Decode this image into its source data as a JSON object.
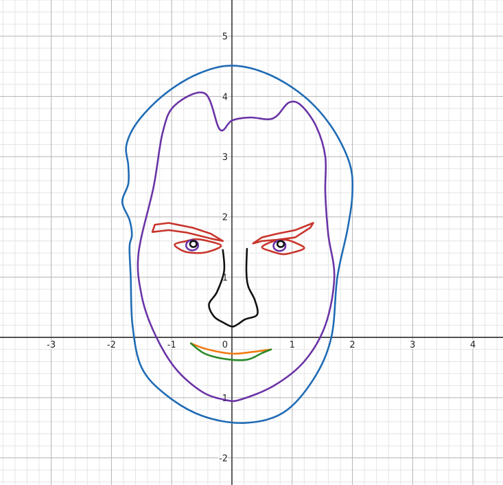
{
  "chart_data": {
    "type": "line",
    "title": "",
    "xlabel": "",
    "ylabel": "",
    "xlim": [
      -3.85,
      4.5
    ],
    "ylim": [
      -2.45,
      5.6
    ],
    "grid": true,
    "minor_subdivisions": 5,
    "x_ticks": [
      {
        "value": -3,
        "label": "-3"
      },
      {
        "value": -2,
        "label": "-2"
      },
      {
        "value": -1,
        "label": "-1"
      },
      {
        "value": 0,
        "label": "0"
      },
      {
        "value": 1,
        "label": "1"
      },
      {
        "value": 2,
        "label": "2"
      },
      {
        "value": 3,
        "label": "3"
      },
      {
        "value": 4,
        "label": "4"
      }
    ],
    "y_ticks": [
      {
        "value": -2,
        "label": "-2"
      },
      {
        "value": -1,
        "label": "-1"
      },
      {
        "value": 1,
        "label": "1"
      },
      {
        "value": 2,
        "label": "2"
      },
      {
        "value": 3,
        "label": "3"
      },
      {
        "value": 4,
        "label": "4"
      },
      {
        "value": 5,
        "label": "5"
      }
    ],
    "series": [
      {
        "name": "outer-head",
        "color": "#1f6bb5",
        "closed": true,
        "smooth": true,
        "points": [
          [
            0,
            4.51
          ],
          [
            0.6,
            4.37
          ],
          [
            1.2,
            4.0
          ],
          [
            1.65,
            3.5
          ],
          [
            1.95,
            2.9
          ],
          [
            2.0,
            2.4
          ],
          [
            1.92,
            1.8
          ],
          [
            1.75,
            1.0
          ],
          [
            1.65,
            0.0
          ],
          [
            1.35,
            -0.7
          ],
          [
            0.85,
            -1.25
          ],
          [
            0.2,
            -1.42
          ],
          [
            -0.5,
            -1.3
          ],
          [
            -1.1,
            -0.95
          ],
          [
            -1.5,
            -0.5
          ],
          [
            -1.65,
            0.2
          ],
          [
            -1.68,
            1.0
          ],
          [
            -1.7,
            1.5
          ],
          [
            -1.66,
            1.7
          ],
          [
            -1.7,
            1.95
          ],
          [
            -1.82,
            2.25
          ],
          [
            -1.72,
            2.55
          ],
          [
            -1.72,
            2.85
          ],
          [
            -1.75,
            3.2
          ],
          [
            -1.55,
            3.6
          ],
          [
            -1.1,
            4.05
          ],
          [
            -0.55,
            4.38
          ]
        ]
      },
      {
        "name": "inner-face",
        "color": "#6a33a6",
        "closed": true,
        "smooth": true,
        "points": [
          [
            0,
            3.6
          ],
          [
            0.3,
            3.65
          ],
          [
            0.6,
            3.62
          ],
          [
            0.75,
            3.68
          ],
          [
            0.95,
            3.9
          ],
          [
            1.15,
            3.85
          ],
          [
            1.4,
            3.5
          ],
          [
            1.55,
            3.0
          ],
          [
            1.55,
            2.4
          ],
          [
            1.6,
            1.7
          ],
          [
            1.7,
            1.0
          ],
          [
            1.55,
            0.2
          ],
          [
            1.2,
            -0.4
          ],
          [
            0.7,
            -0.8
          ],
          [
            0.15,
            -1.03
          ],
          [
            -0.1,
            -1.04
          ],
          [
            -0.5,
            -0.9
          ],
          [
            -0.95,
            -0.5
          ],
          [
            -1.3,
            0.1
          ],
          [
            -1.5,
            0.7
          ],
          [
            -1.55,
            1.4
          ],
          [
            -1.3,
            2.5
          ],
          [
            -1.15,
            3.4
          ],
          [
            -0.95,
            3.85
          ],
          [
            -0.45,
            4.05
          ],
          [
            -0.2,
            3.45
          ]
        ]
      },
      {
        "name": "left-eyebrow",
        "color": "#c8352c",
        "closed": true,
        "smooth": false,
        "points": [
          [
            -1.32,
            1.75
          ],
          [
            -1.28,
            1.87
          ],
          [
            -1.05,
            1.9
          ],
          [
            -0.65,
            1.82
          ],
          [
            -0.35,
            1.72
          ],
          [
            -0.15,
            1.6
          ],
          [
            -0.35,
            1.64
          ],
          [
            -0.75,
            1.74
          ],
          [
            -1.05,
            1.78
          ]
        ]
      },
      {
        "name": "right-eyebrow",
        "color": "#c8352c",
        "closed": true,
        "smooth": false,
        "points": [
          [
            0.35,
            1.56
          ],
          [
            0.5,
            1.66
          ],
          [
            0.75,
            1.72
          ],
          [
            1.05,
            1.78
          ],
          [
            1.35,
            1.9
          ],
          [
            1.3,
            1.82
          ],
          [
            1.05,
            1.66
          ],
          [
            0.75,
            1.62
          ],
          [
            0.5,
            1.6
          ]
        ]
      },
      {
        "name": "left-eye-outline",
        "color": "#c8352c",
        "closed": true,
        "smooth": true,
        "points": [
          [
            -0.95,
            1.54
          ],
          [
            -0.75,
            1.6
          ],
          [
            -0.6,
            1.63
          ],
          [
            -0.4,
            1.6
          ],
          [
            -0.18,
            1.52
          ],
          [
            -0.4,
            1.42
          ],
          [
            -0.6,
            1.4
          ],
          [
            -0.8,
            1.43
          ]
        ]
      },
      {
        "name": "right-eye-outline",
        "color": "#c8352c",
        "closed": true,
        "smooth": true,
        "points": [
          [
            0.5,
            1.5
          ],
          [
            0.7,
            1.6
          ],
          [
            0.9,
            1.62
          ],
          [
            1.1,
            1.55
          ],
          [
            1.2,
            1.48
          ],
          [
            1.05,
            1.42
          ],
          [
            0.85,
            1.38
          ],
          [
            0.65,
            1.43
          ]
        ]
      },
      {
        "name": "left-iris",
        "color": "#6a33a6",
        "closed": true,
        "smooth": true,
        "ellipse": [
          -0.66,
          1.53,
          0.1,
          0.085
        ]
      },
      {
        "name": "right-iris",
        "color": "#6a33a6",
        "closed": true,
        "smooth": true,
        "ellipse": [
          0.79,
          1.52,
          0.1,
          0.085
        ]
      },
      {
        "name": "left-pupil",
        "color": "#111111",
        "closed": true,
        "smooth": true,
        "ellipse": [
          -0.64,
          1.55,
          0.055,
          0.05
        ]
      },
      {
        "name": "right-pupil",
        "color": "#111111",
        "closed": true,
        "smooth": true,
        "ellipse": [
          0.81,
          1.55,
          0.055,
          0.05
        ]
      },
      {
        "name": "nose",
        "color": "#111111",
        "closed": false,
        "smooth": true,
        "points": [
          [
            -0.15,
            1.45
          ],
          [
            -0.13,
            1.1
          ],
          [
            -0.25,
            0.75
          ],
          [
            -0.38,
            0.55
          ],
          [
            -0.3,
            0.35
          ],
          [
            -0.15,
            0.25
          ],
          [
            0.0,
            0.18
          ],
          [
            0.1,
            0.22
          ],
          [
            0.22,
            0.3
          ],
          [
            0.42,
            0.38
          ],
          [
            0.38,
            0.62
          ],
          [
            0.27,
            0.85
          ],
          [
            0.24,
            1.1
          ],
          [
            0.25,
            1.47
          ]
        ]
      },
      {
        "name": "upper-lip",
        "color": "#f07a10",
        "closed": false,
        "smooth": true,
        "points": [
          [
            -0.68,
            -0.1
          ],
          [
            -0.4,
            -0.2
          ],
          [
            0.0,
            -0.27
          ],
          [
            0.35,
            -0.24
          ],
          [
            0.65,
            -0.2
          ]
        ]
      },
      {
        "name": "lower-lip",
        "color": "#2a8a2a",
        "closed": false,
        "smooth": true,
        "points": [
          [
            -0.68,
            -0.1
          ],
          [
            -0.45,
            -0.27
          ],
          [
            -0.1,
            -0.36
          ],
          [
            0.25,
            -0.37
          ],
          [
            0.5,
            -0.26
          ],
          [
            0.65,
            -0.2
          ]
        ]
      }
    ]
  }
}
